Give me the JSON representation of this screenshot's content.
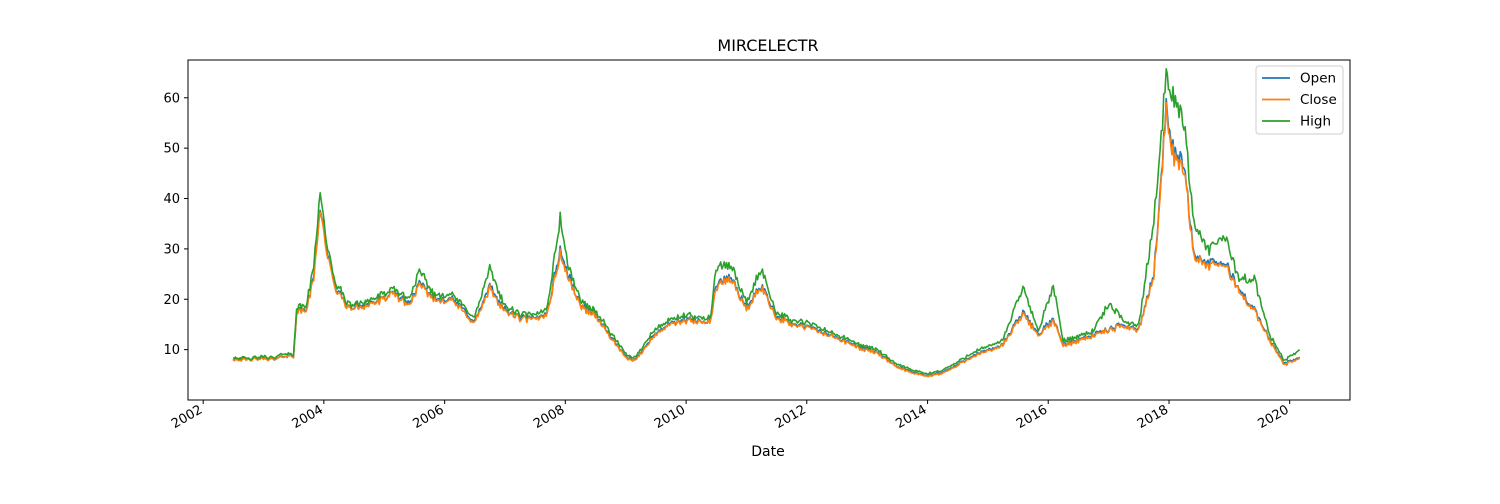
{
  "chart_data": {
    "type": "line",
    "title": "MIRCELECTR",
    "xlabel": "Date",
    "ylabel": "",
    "x_axis_type": "date",
    "xlim": [
      "2001-10-01",
      "2020-12-31"
    ],
    "ylim": [
      0,
      67.5
    ],
    "x_ticks": [
      "2002",
      "2004",
      "2006",
      "2008",
      "2010",
      "2012",
      "2014",
      "2016",
      "2018",
      "2020"
    ],
    "y_ticks": [
      10,
      20,
      30,
      40,
      50,
      60
    ],
    "grid": false,
    "legend_position": "top-right",
    "series": [
      {
        "name": "Open",
        "color": "#1f77b4",
        "points": [
          [
            "2002-07-01",
            8.2
          ],
          [
            "2002-10-01",
            8.0
          ],
          [
            "2003-01-01",
            8.3
          ],
          [
            "2003-03-15",
            8.0
          ],
          [
            "2003-05-01",
            8.8
          ],
          [
            "2003-07-01",
            8.6
          ],
          [
            "2003-07-20",
            17.6
          ],
          [
            "2003-09-15",
            18.0
          ],
          [
            "2003-11-01",
            24.5
          ],
          [
            "2003-12-10",
            39.0
          ],
          [
            "2004-01-10",
            31.5
          ],
          [
            "2004-03-01",
            23.0
          ],
          [
            "2004-06-01",
            18.2
          ],
          [
            "2004-09-01",
            19.0
          ],
          [
            "2004-12-01",
            19.7
          ],
          [
            "2005-03-01",
            21.2
          ],
          [
            "2005-06-01",
            19.2
          ],
          [
            "2005-08-01",
            23.0
          ],
          [
            "2005-11-01",
            20.0
          ],
          [
            "2006-02-01",
            20.3
          ],
          [
            "2006-05-01",
            17.7
          ],
          [
            "2006-07-01",
            15.5
          ],
          [
            "2006-10-01",
            22.5
          ],
          [
            "2007-01-01",
            17.9
          ],
          [
            "2007-04-01",
            16.4
          ],
          [
            "2007-07-01",
            16.1
          ],
          [
            "2007-09-15",
            17.5
          ],
          [
            "2007-12-01",
            30.0
          ],
          [
            "2008-01-15",
            25.0
          ],
          [
            "2008-04-01",
            19.0
          ],
          [
            "2008-07-01",
            17.0
          ],
          [
            "2008-10-01",
            12.7
          ],
          [
            "2009-01-01",
            8.5
          ],
          [
            "2009-03-01",
            8.0
          ],
          [
            "2009-06-01",
            12.3
          ],
          [
            "2009-09-01",
            14.8
          ],
          [
            "2010-01-01",
            16.0
          ],
          [
            "2010-04-01",
            15.5
          ],
          [
            "2010-06-01",
            16.0
          ],
          [
            "2010-07-01",
            23.0
          ],
          [
            "2010-10-01",
            24.3
          ],
          [
            "2011-01-01",
            18.2
          ],
          [
            "2011-04-01",
            23.0
          ],
          [
            "2011-07-01",
            16.7
          ],
          [
            "2011-10-01",
            15.1
          ],
          [
            "2012-01-01",
            14.6
          ],
          [
            "2012-06-01",
            12.8
          ],
          [
            "2012-12-01",
            10.3
          ],
          [
            "2013-03-01",
            9.6
          ],
          [
            "2013-06-01",
            7.1
          ],
          [
            "2013-10-01",
            5.5
          ],
          [
            "2014-01-01",
            4.8
          ],
          [
            "2014-04-01",
            5.5
          ],
          [
            "2014-07-01",
            7.0
          ],
          [
            "2014-10-01",
            8.9
          ],
          [
            "2015-01-01",
            9.8
          ],
          [
            "2015-04-01",
            11.1
          ],
          [
            "2015-08-01",
            17.4
          ],
          [
            "2015-11-01",
            13.1
          ],
          [
            "2016-02-01",
            16.0
          ],
          [
            "2016-04-01",
            11.0
          ],
          [
            "2016-07-01",
            12.0
          ],
          [
            "2016-10-01",
            13.0
          ],
          [
            "2017-01-01",
            14.0
          ],
          [
            "2017-04-01",
            15.0
          ],
          [
            "2017-07-01",
            14.0
          ],
          [
            "2017-10-01",
            25.0
          ],
          [
            "2017-12-15",
            58.0
          ],
          [
            "2018-02-01",
            49.0
          ],
          [
            "2018-04-01",
            47.0
          ],
          [
            "2018-06-01",
            29.0
          ],
          [
            "2018-09-01",
            27.0
          ],
          [
            "2018-12-01",
            27.5
          ],
          [
            "2019-03-01",
            22.0
          ],
          [
            "2019-06-01",
            18.0
          ],
          [
            "2019-09-01",
            12.0
          ],
          [
            "2019-12-01",
            7.2
          ],
          [
            "2020-03-01",
            8.5
          ]
        ]
      },
      {
        "name": "Close",
        "color": "#ff7f0e",
        "points": [
          [
            "2002-07-01",
            8.1
          ],
          [
            "2002-10-01",
            7.9
          ],
          [
            "2003-01-01",
            8.2
          ],
          [
            "2003-03-15",
            8.0
          ],
          [
            "2003-05-01",
            8.7
          ],
          [
            "2003-07-01",
            8.6
          ],
          [
            "2003-07-20",
            17.4
          ],
          [
            "2003-09-15",
            17.8
          ],
          [
            "2003-11-01",
            24.0
          ],
          [
            "2003-12-10",
            38.5
          ],
          [
            "2004-01-10",
            31.0
          ],
          [
            "2004-03-01",
            22.7
          ],
          [
            "2004-06-01",
            18.0
          ],
          [
            "2004-09-01",
            18.7
          ],
          [
            "2004-12-01",
            19.5
          ],
          [
            "2005-03-01",
            21.0
          ],
          [
            "2005-06-01",
            18.8
          ],
          [
            "2005-08-01",
            22.7
          ],
          [
            "2005-11-01",
            19.8
          ],
          [
            "2006-02-01",
            20.0
          ],
          [
            "2006-05-01",
            17.3
          ],
          [
            "2006-07-01",
            15.2
          ],
          [
            "2006-10-01",
            22.0
          ],
          [
            "2007-01-01",
            17.6
          ],
          [
            "2007-04-01",
            16.1
          ],
          [
            "2007-07-01",
            15.9
          ],
          [
            "2007-09-15",
            17.2
          ],
          [
            "2007-12-01",
            29.0
          ],
          [
            "2008-01-15",
            24.5
          ],
          [
            "2008-04-01",
            18.7
          ],
          [
            "2008-07-01",
            16.7
          ],
          [
            "2008-10-01",
            12.4
          ],
          [
            "2009-01-01",
            8.3
          ],
          [
            "2009-03-01",
            7.8
          ],
          [
            "2009-06-01",
            12.0
          ],
          [
            "2009-09-01",
            14.6
          ],
          [
            "2010-01-01",
            15.7
          ],
          [
            "2010-04-01",
            15.3
          ],
          [
            "2010-06-01",
            15.8
          ],
          [
            "2010-07-01",
            22.5
          ],
          [
            "2010-10-01",
            24.0
          ],
          [
            "2011-01-01",
            17.9
          ],
          [
            "2011-04-01",
            22.5
          ],
          [
            "2011-07-01",
            16.4
          ],
          [
            "2011-10-01",
            14.9
          ],
          [
            "2012-01-01",
            14.4
          ],
          [
            "2012-06-01",
            12.6
          ],
          [
            "2012-12-01",
            10.1
          ],
          [
            "2013-03-01",
            9.4
          ],
          [
            "2013-06-01",
            7.0
          ],
          [
            "2013-10-01",
            5.3
          ],
          [
            "2014-01-01",
            4.7
          ],
          [
            "2014-04-01",
            5.3
          ],
          [
            "2014-07-01",
            6.8
          ],
          [
            "2014-10-01",
            8.7
          ],
          [
            "2015-01-01",
            9.6
          ],
          [
            "2015-04-01",
            10.9
          ],
          [
            "2015-08-01",
            17.0
          ],
          [
            "2015-11-01",
            12.9
          ],
          [
            "2016-02-01",
            15.6
          ],
          [
            "2016-04-01",
            10.8
          ],
          [
            "2016-07-01",
            11.8
          ],
          [
            "2016-10-01",
            12.8
          ],
          [
            "2017-01-01",
            13.8
          ],
          [
            "2017-04-01",
            14.7
          ],
          [
            "2017-07-01",
            13.8
          ],
          [
            "2017-10-01",
            24.5
          ],
          [
            "2017-12-15",
            57.0
          ],
          [
            "2018-02-01",
            48.0
          ],
          [
            "2018-04-01",
            46.0
          ],
          [
            "2018-06-01",
            28.5
          ],
          [
            "2018-09-01",
            26.5
          ],
          [
            "2018-12-01",
            27.0
          ],
          [
            "2019-03-01",
            21.6
          ],
          [
            "2019-06-01",
            17.6
          ],
          [
            "2019-09-01",
            11.8
          ],
          [
            "2019-12-01",
            7.0
          ],
          [
            "2020-03-01",
            8.3
          ]
        ]
      },
      {
        "name": "High",
        "color": "#2ca02c",
        "points": [
          [
            "2002-07-01",
            8.5
          ],
          [
            "2002-10-01",
            8.2
          ],
          [
            "2003-01-01",
            8.6
          ],
          [
            "2003-03-15",
            8.3
          ],
          [
            "2003-05-01",
            9.3
          ],
          [
            "2003-07-01",
            8.9
          ],
          [
            "2003-07-20",
            18.3
          ],
          [
            "2003-09-15",
            18.7
          ],
          [
            "2003-11-01",
            26.5
          ],
          [
            "2003-12-10",
            42.3
          ],
          [
            "2004-01-10",
            33.0
          ],
          [
            "2004-03-01",
            24.0
          ],
          [
            "2004-06-01",
            18.8
          ],
          [
            "2004-09-01",
            19.6
          ],
          [
            "2004-12-01",
            20.5
          ],
          [
            "2005-03-01",
            22.0
          ],
          [
            "2005-06-01",
            20.0
          ],
          [
            "2005-08-01",
            25.5
          ],
          [
            "2005-11-01",
            20.8
          ],
          [
            "2006-02-01",
            21.2
          ],
          [
            "2006-05-01",
            18.5
          ],
          [
            "2006-07-01",
            16.3
          ],
          [
            "2006-10-01",
            26.0
          ],
          [
            "2007-01-01",
            18.6
          ],
          [
            "2007-04-01",
            17.0
          ],
          [
            "2007-07-01",
            16.8
          ],
          [
            "2007-09-15",
            18.5
          ],
          [
            "2007-12-01",
            36.3
          ],
          [
            "2008-01-15",
            27.0
          ],
          [
            "2008-04-01",
            19.8
          ],
          [
            "2008-07-01",
            17.7
          ],
          [
            "2008-10-01",
            13.4
          ],
          [
            "2009-01-01",
            9.0
          ],
          [
            "2009-03-01",
            8.4
          ],
          [
            "2009-06-01",
            13.2
          ],
          [
            "2009-09-01",
            15.5
          ],
          [
            "2010-01-01",
            16.8
          ],
          [
            "2010-04-01",
            16.2
          ],
          [
            "2010-06-01",
            16.8
          ],
          [
            "2010-07-01",
            26.5
          ],
          [
            "2010-10-01",
            26.7
          ],
          [
            "2011-01-01",
            19.2
          ],
          [
            "2011-04-01",
            26.0
          ],
          [
            "2011-07-01",
            17.4
          ],
          [
            "2011-10-01",
            15.8
          ],
          [
            "2012-01-01",
            15.3
          ],
          [
            "2012-06-01",
            13.4
          ],
          [
            "2012-12-01",
            10.8
          ],
          [
            "2013-03-01",
            10.1
          ],
          [
            "2013-06-01",
            7.6
          ],
          [
            "2013-10-01",
            5.9
          ],
          [
            "2014-01-01",
            5.2
          ],
          [
            "2014-04-01",
            5.9
          ],
          [
            "2014-07-01",
            7.5
          ],
          [
            "2014-10-01",
            9.5
          ],
          [
            "2015-01-01",
            10.5
          ],
          [
            "2015-04-01",
            12.0
          ],
          [
            "2015-08-01",
            22.3
          ],
          [
            "2015-11-01",
            13.8
          ],
          [
            "2016-02-01",
            22.5
          ],
          [
            "2016-04-01",
            11.7
          ],
          [
            "2016-07-01",
            12.7
          ],
          [
            "2016-10-01",
            13.8
          ],
          [
            "2017-01-01",
            19.0
          ],
          [
            "2017-04-01",
            15.8
          ],
          [
            "2017-07-01",
            14.7
          ],
          [
            "2017-10-01",
            35.5
          ],
          [
            "2017-12-15",
            64.5
          ],
          [
            "2018-02-01",
            59.5
          ],
          [
            "2018-04-01",
            55.5
          ],
          [
            "2018-06-01",
            35.0
          ],
          [
            "2018-09-01",
            29.5
          ],
          [
            "2018-12-01",
            33.0
          ],
          [
            "2019-03-01",
            24.0
          ],
          [
            "2019-06-01",
            24.0
          ],
          [
            "2019-09-01",
            13.0
          ],
          [
            "2019-12-01",
            7.8
          ],
          [
            "2020-03-01",
            10.0
          ]
        ]
      }
    ]
  }
}
